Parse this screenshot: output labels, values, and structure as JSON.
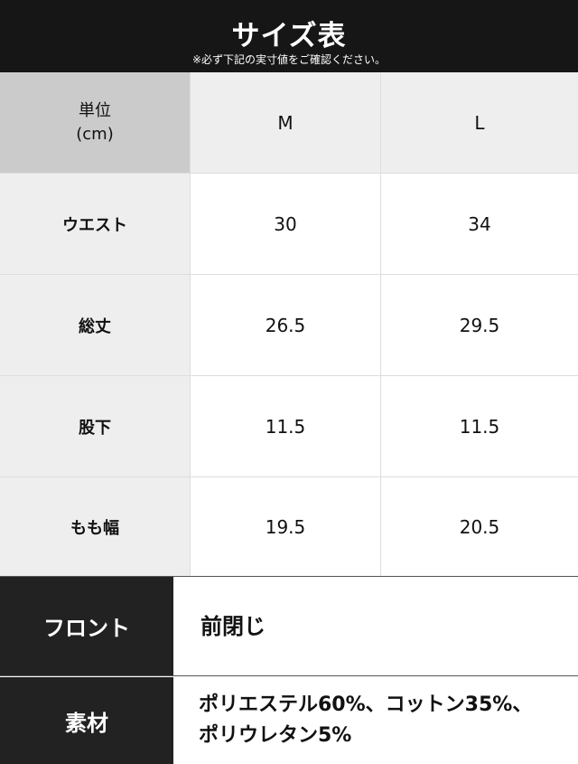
{
  "header": {
    "title": "サイズ表",
    "subtitle": "※必ず下記の実寸値をご確認ください。"
  },
  "table": {
    "unit_label": "単位",
    "unit": "(cm)",
    "sizes": [
      "M",
      "L"
    ],
    "rows": [
      {
        "label": "ウエスト",
        "values": [
          "30",
          "34"
        ]
      },
      {
        "label": "総丈",
        "values": [
          "26.5",
          "29.5"
        ]
      },
      {
        "label": "股下",
        "values": [
          "11.5",
          "11.5"
        ]
      },
      {
        "label": "もも幅",
        "values": [
          "19.5",
          "20.5"
        ]
      }
    ]
  },
  "specs": [
    {
      "label": "フロント",
      "value": "前閉じ"
    },
    {
      "label": "素材",
      "value": "ポリエステル60%、コットン35%、",
      "value2": "ポリウレタン5%"
    }
  ]
}
